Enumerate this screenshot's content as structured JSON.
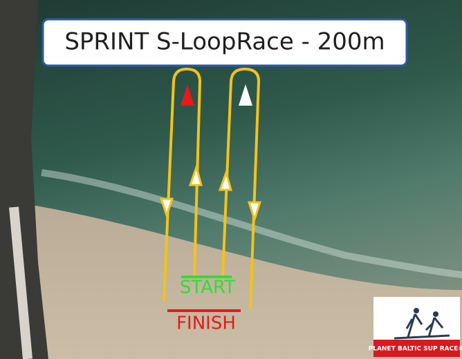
{
  "title": "SPRINT S-LoopRace - 200m",
  "start_label": "START",
  "finish_label": "FINISH",
  "logo": {
    "text": "PLANET BALTIC SUP RACE®"
  }
}
